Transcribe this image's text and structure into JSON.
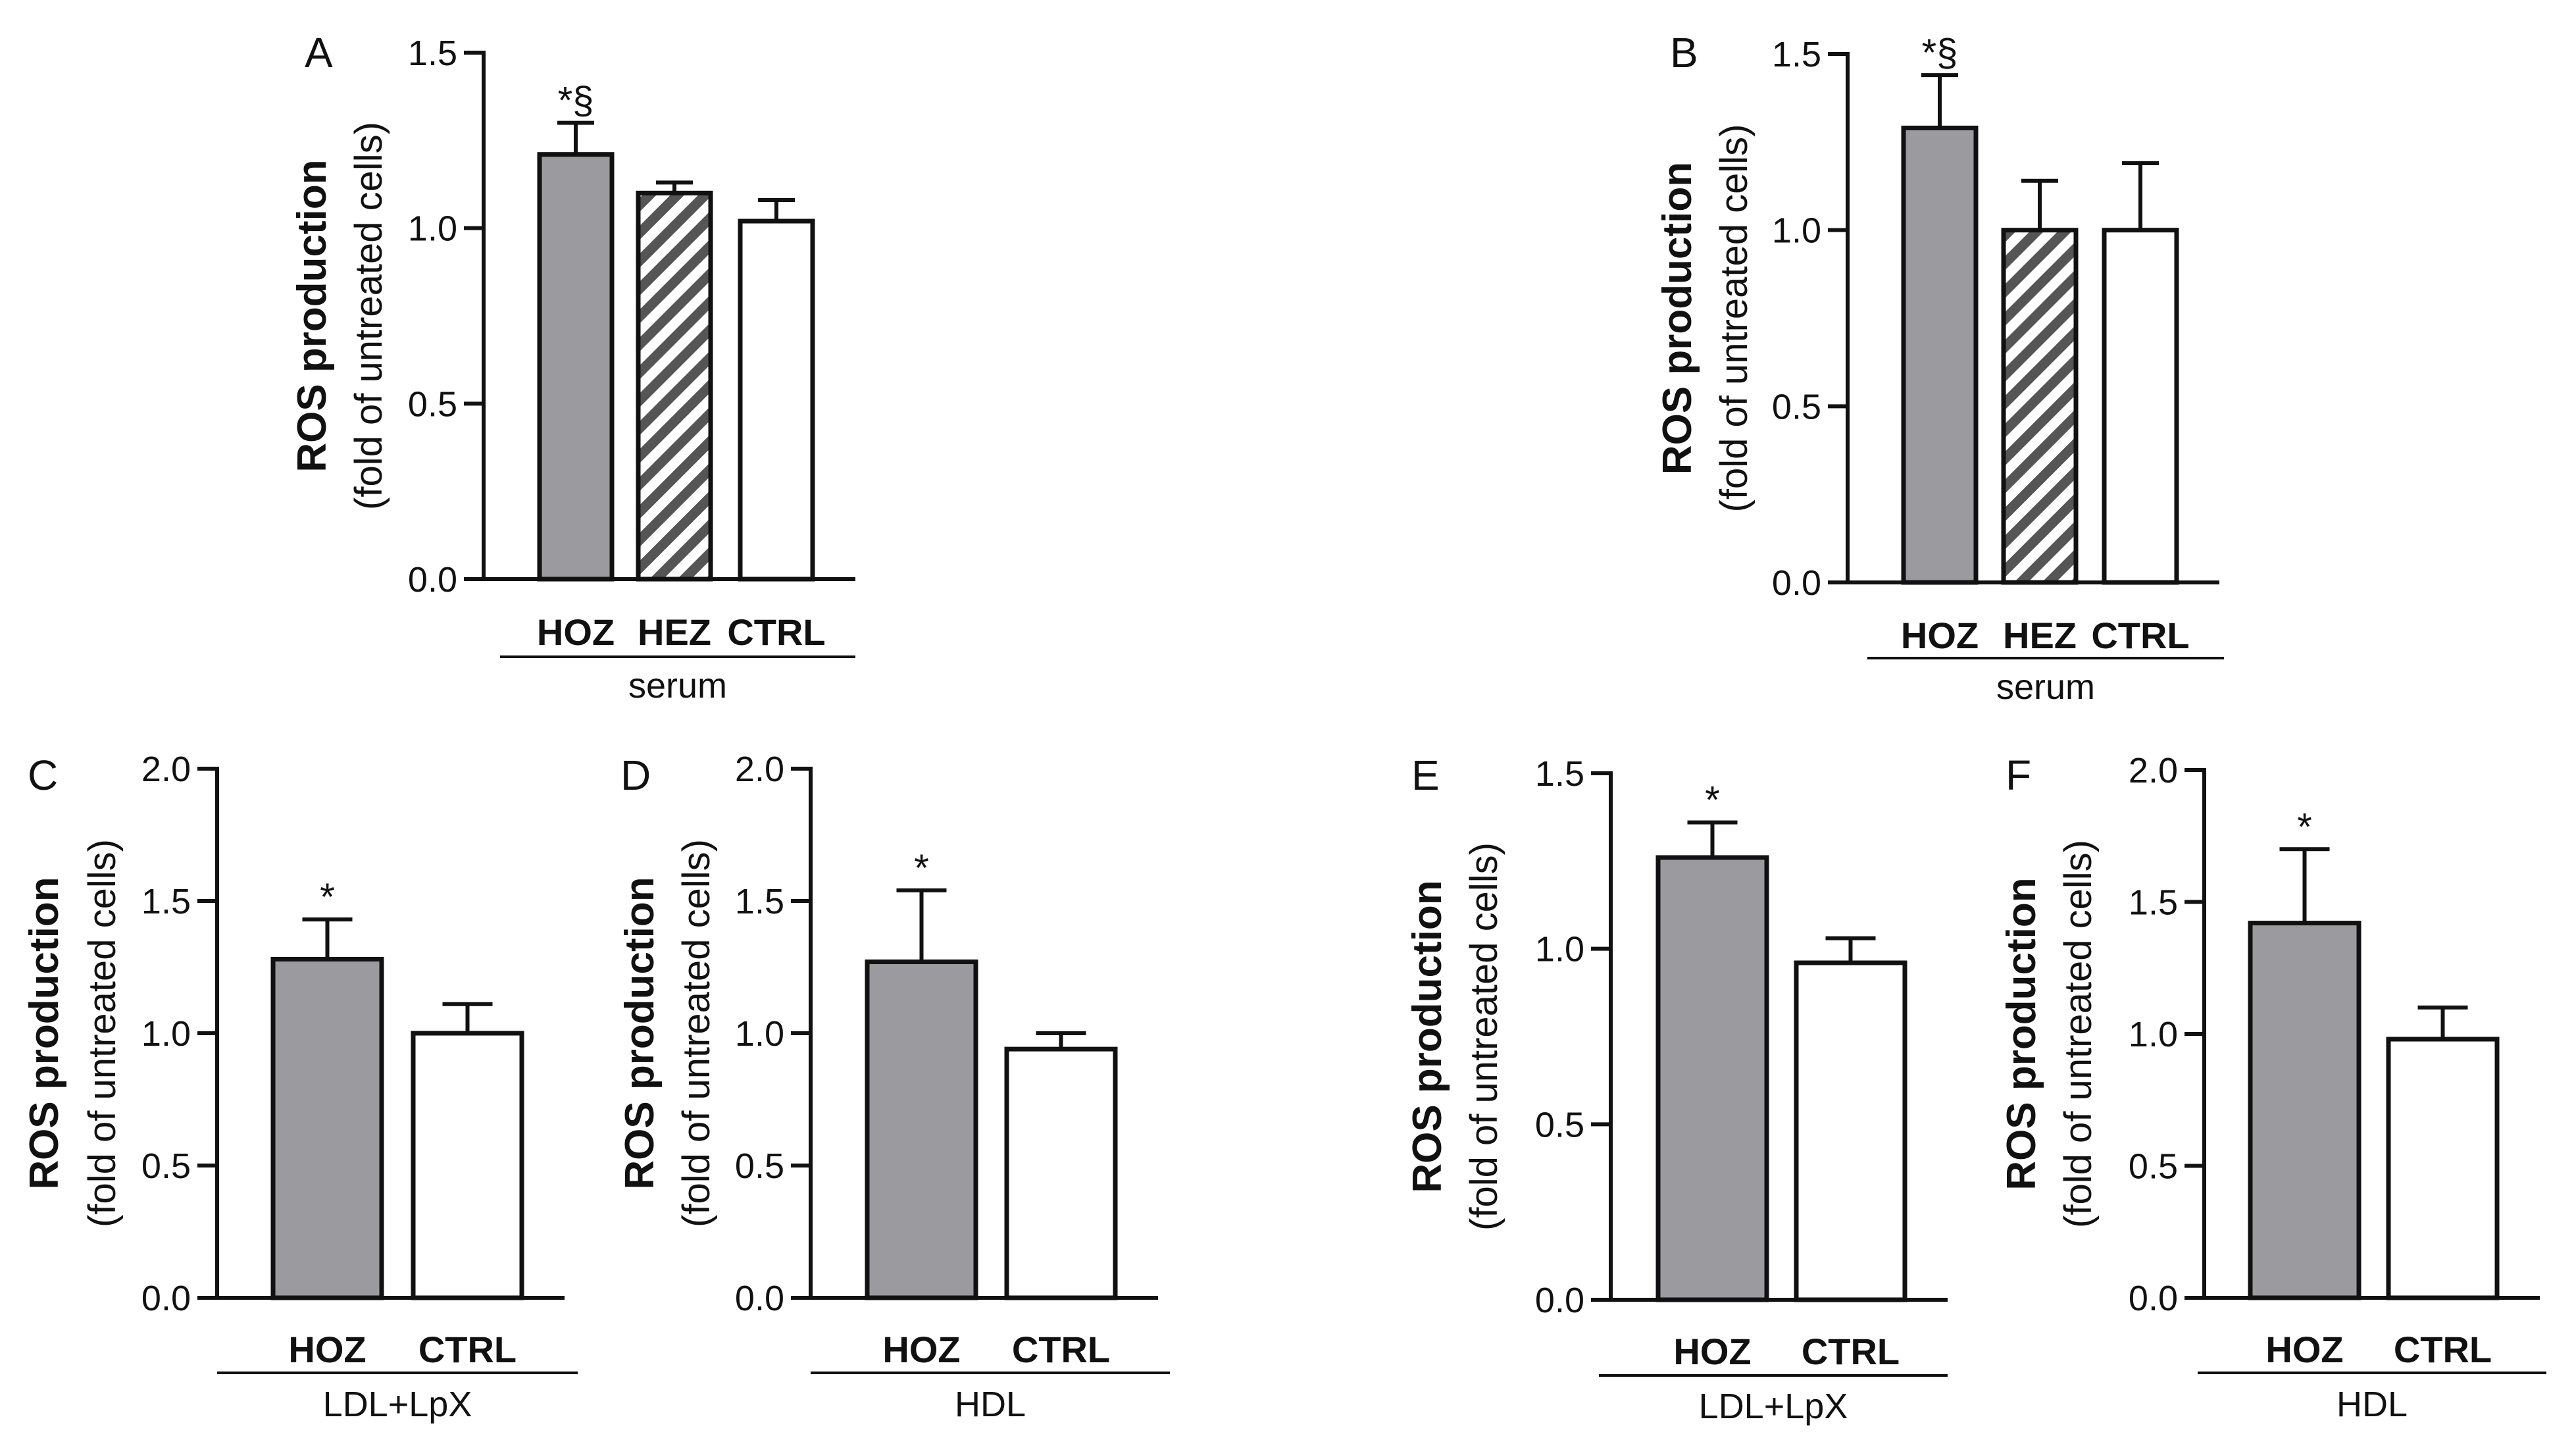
{
  "colors": {
    "gray_bar": "#9b9a9f",
    "hatch_line": "#555555",
    "white_bar": "#ffffff",
    "stroke": "#111111"
  },
  "chart_data": [
    {
      "id": "A",
      "type": "bar",
      "panel_label": "A",
      "title_bold": "ROS production",
      "title_sub": "(fold of untreated cells)",
      "group_label": "serum",
      "ylim": [
        0,
        1.5
      ],
      "yticks": [
        0.0,
        0.5,
        1.0,
        1.5
      ],
      "ytick_labels": [
        "0.0",
        "0.5",
        "1.0",
        "1.5"
      ],
      "categories": [
        "HOZ",
        "HEZ",
        "CTRL"
      ],
      "values": [
        1.21,
        1.1,
        1.02
      ],
      "errors": [
        0.09,
        0.03,
        0.06
      ],
      "fills": [
        "gray",
        "hatch",
        "white"
      ],
      "annotations": [
        "*§",
        "",
        ""
      ]
    },
    {
      "id": "B",
      "type": "bar",
      "panel_label": "B",
      "title_bold": "ROS production",
      "title_sub": "(fold of untreated cells)",
      "group_label": "serum",
      "ylim": [
        0,
        1.5
      ],
      "yticks": [
        0.0,
        0.5,
        1.0,
        1.5
      ],
      "ytick_labels": [
        "0.0",
        "0.5",
        "1.0",
        "1.5"
      ],
      "categories": [
        "HOZ",
        "HEZ",
        "CTRL"
      ],
      "values": [
        1.29,
        1.0,
        1.0
      ],
      "errors": [
        0.15,
        0.14,
        0.19
      ],
      "fills": [
        "gray",
        "hatch",
        "white"
      ],
      "annotations": [
        "*§",
        "",
        ""
      ]
    },
    {
      "id": "C",
      "type": "bar",
      "panel_label": "C",
      "title_bold": "ROS production",
      "title_sub": "(fold of untreated cells)",
      "group_label": "LDL+LpX",
      "ylim": [
        0,
        2.0
      ],
      "yticks": [
        0.0,
        0.5,
        1.0,
        1.5,
        2.0
      ],
      "ytick_labels": [
        "0.0",
        "0.5",
        "1.0",
        "1.5",
        "2.0"
      ],
      "categories": [
        "HOZ",
        "CTRL"
      ],
      "values": [
        1.28,
        1.0
      ],
      "errors": [
        0.15,
        0.11
      ],
      "fills": [
        "gray",
        "white"
      ],
      "annotations": [
        "*",
        ""
      ]
    },
    {
      "id": "D",
      "type": "bar",
      "panel_label": "D",
      "title_bold": "ROS production",
      "title_sub": "(fold of untreated cells)",
      "group_label": "HDL",
      "ylim": [
        0,
        2.0
      ],
      "yticks": [
        0.0,
        0.5,
        1.0,
        1.5,
        2.0
      ],
      "ytick_labels": [
        "0.0",
        "0.5",
        "1.0",
        "1.5",
        "2.0"
      ],
      "categories": [
        "HOZ",
        "CTRL"
      ],
      "values": [
        1.27,
        0.94
      ],
      "errors": [
        0.27,
        0.06
      ],
      "fills": [
        "gray",
        "white"
      ],
      "annotations": [
        "*",
        ""
      ]
    },
    {
      "id": "E",
      "type": "bar",
      "panel_label": "E",
      "title_bold": "ROS production",
      "title_sub": "(fold of untreated cells)",
      "group_label": "LDL+LpX",
      "ylim": [
        0,
        1.5
      ],
      "yticks": [
        0.0,
        0.5,
        1.0,
        1.5
      ],
      "ytick_labels": [
        "0.0",
        "0.5",
        "1.0",
        "1.5"
      ],
      "categories": [
        "HOZ",
        "CTRL"
      ],
      "values": [
        1.26,
        0.96
      ],
      "errors": [
        0.1,
        0.07
      ],
      "fills": [
        "gray",
        "white"
      ],
      "annotations": [
        "*",
        ""
      ]
    },
    {
      "id": "F",
      "type": "bar",
      "panel_label": "F",
      "title_bold": "ROS production",
      "title_sub": "(fold of untreated cells)",
      "group_label": "HDL",
      "ylim": [
        0,
        2.0
      ],
      "yticks": [
        0.0,
        0.5,
        1.0,
        1.5,
        2.0
      ],
      "ytick_labels": [
        "0.0",
        "0.5",
        "1.0",
        "1.5",
        "2.0"
      ],
      "categories": [
        "HOZ",
        "CTRL"
      ],
      "values": [
        1.42,
        0.98
      ],
      "errors": [
        0.28,
        0.12
      ],
      "fills": [
        "gray",
        "white"
      ],
      "annotations": [
        "*",
        ""
      ]
    }
  ]
}
